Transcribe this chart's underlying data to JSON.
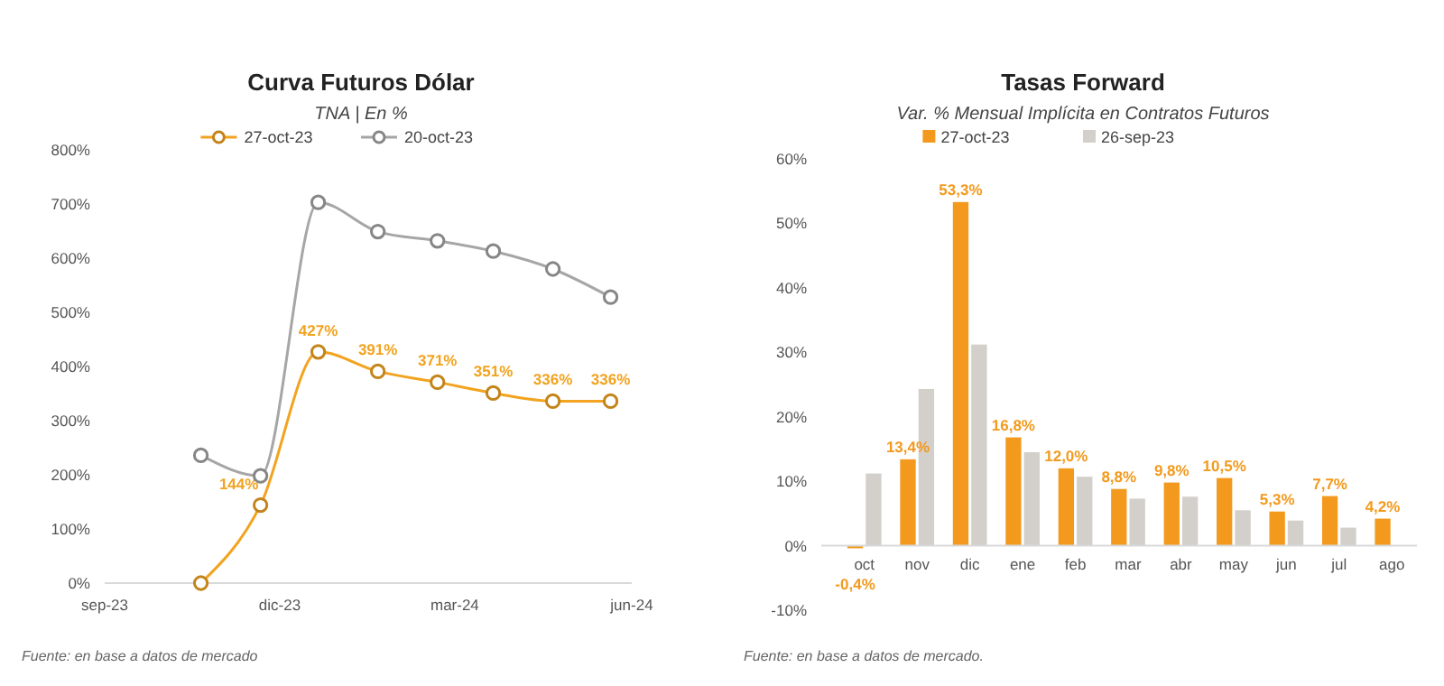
{
  "chart_data": [
    {
      "type": "line",
      "title": "Curva Futuros Dólar",
      "subtitle": "TNA | En %",
      "x": [
        "2023-10-21",
        "2023-11-21",
        "2023-12-21",
        "2024-01-21",
        "2024-02-21",
        "2024-03-21",
        "2024-04-21",
        "2024-05-21"
      ],
      "series": [
        {
          "name": "27-oct-23",
          "color": "#f2a31f",
          "values": [
            0,
            144,
            427,
            391,
            371,
            351,
            336,
            336
          ],
          "value_labels": [
            null,
            "144%",
            "427%",
            "391%",
            "371%",
            "351%",
            "336%",
            "336%"
          ]
        },
        {
          "name": "20-oct-23",
          "color": "#a6a6a6",
          "values": [
            236,
            198,
            703,
            649,
            632,
            613,
            580,
            528
          ]
        }
      ],
      "xlim": [
        "2023-09-01",
        "2024-06-01"
      ],
      "xticks": [
        {
          "value": "2023-09-01",
          "label": "sep-23"
        },
        {
          "value": "2023-12-01",
          "label": "dic-23"
        },
        {
          "value": "2024-03-01",
          "label": "mar-24"
        },
        {
          "value": "2024-06-01",
          "label": "jun-24"
        }
      ],
      "ylim": [
        0,
        800
      ],
      "yticks": [
        {
          "value": 0,
          "label": "0%"
        },
        {
          "value": 100,
          "label": "100%"
        },
        {
          "value": 200,
          "label": "200%"
        },
        {
          "value": 300,
          "label": "300%"
        },
        {
          "value": 400,
          "label": "400%"
        },
        {
          "value": 500,
          "label": "500%"
        },
        {
          "value": 600,
          "label": "600%"
        },
        {
          "value": 700,
          "label": "700%"
        },
        {
          "value": 800,
          "label": "800%"
        }
      ],
      "marker": "circle",
      "legend": "top",
      "grid": false,
      "annotations": [
        "Fuente: en base a datos de mercado"
      ]
    },
    {
      "type": "bar",
      "title": "Tasas Forward",
      "subtitle": "Var. % Mensual Implícita en Contratos Futuros",
      "categories": [
        "oct",
        "nov",
        "dic",
        "ene",
        "feb",
        "mar",
        "abr",
        "may",
        "jun",
        "jul",
        "ago"
      ],
      "series": [
        {
          "name": "27-oct-23",
          "color": "#f39a1e",
          "values": [
            -0.4,
            13.4,
            53.3,
            16.8,
            12.0,
            8.8,
            9.8,
            10.5,
            5.3,
            7.7,
            4.2
          ],
          "value_labels": [
            "-0,4%",
            "13,4%",
            "53,3%",
            "16,8%",
            "12,0%",
            "8,8%",
            "9,8%",
            "10,5%",
            "5,3%",
            "7,7%",
            "4,2%"
          ]
        },
        {
          "name": "26-sep-23",
          "color": "#d3cfca",
          "values": [
            11.2,
            24.3,
            31.2,
            14.5,
            10.7,
            7.3,
            7.6,
            5.5,
            3.9,
            2.8,
            null
          ]
        }
      ],
      "ylim": [
        -10,
        60
      ],
      "yticks": [
        {
          "value": -10,
          "label": "-10%"
        },
        {
          "value": 0,
          "label": "0%"
        },
        {
          "value": 10,
          "label": "10%"
        },
        {
          "value": 20,
          "label": "20%"
        },
        {
          "value": 30,
          "label": "30%"
        },
        {
          "value": 40,
          "label": "40%"
        },
        {
          "value": 50,
          "label": "50%"
        },
        {
          "value": 60,
          "label": "60%"
        }
      ],
      "legend": "top",
      "grid": false,
      "annotations": [
        "Fuente: en base a datos de mercado."
      ]
    }
  ]
}
